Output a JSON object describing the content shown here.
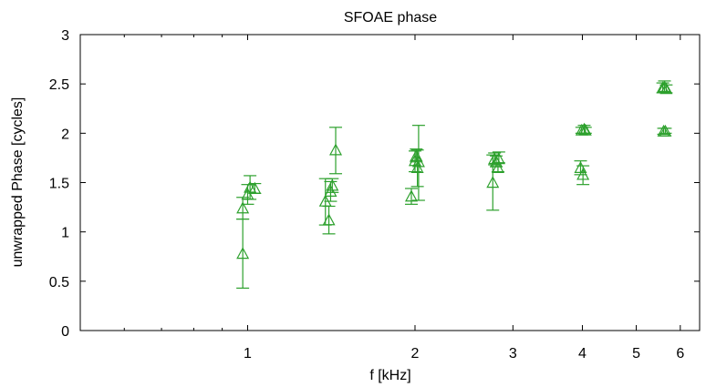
{
  "chart_data": {
    "type": "scatter",
    "title": "SFOAE phase",
    "xlabel": "f [kHz]",
    "ylabel": "unwrapped Phase [cycles]",
    "x_scale": "log",
    "xlim": [
      0.5,
      6.5
    ],
    "ylim": [
      0,
      3
    ],
    "x_ticks": [
      1,
      2,
      3,
      4,
      5,
      6
    ],
    "x_tick_labels": [
      "1",
      "2",
      "3",
      "4",
      "5",
      "6"
    ],
    "y_ticks": [
      0,
      0.5,
      1,
      1.5,
      2,
      2.5,
      3
    ],
    "y_tick_labels": [
      "0",
      "0.5",
      "1",
      "1.5",
      "2",
      "2.5",
      "3"
    ],
    "grid": false,
    "marker": "triangle",
    "color": "#2ca02c",
    "points": [
      {
        "x": 0.98,
        "y": 0.78,
        "ylo": 0.43,
        "yhi": 1.13
      },
      {
        "x": 0.98,
        "y": 1.24,
        "ylo": 1.13,
        "yhi": 1.35
      },
      {
        "x": 1.0,
        "y": 1.38,
        "ylo": 1.28,
        "yhi": 1.48
      },
      {
        "x": 1.01,
        "y": 1.45,
        "ylo": 1.33,
        "yhi": 1.57
      },
      {
        "x": 1.03,
        "y": 1.44,
        "ylo": 1.39,
        "yhi": 1.49
      },
      {
        "x": 1.38,
        "y": 1.31,
        "ylo": 1.07,
        "yhi": 1.54
      },
      {
        "x": 1.4,
        "y": 1.12,
        "ylo": 0.98,
        "yhi": 1.26
      },
      {
        "x": 1.41,
        "y": 1.41,
        "ylo": 1.31,
        "yhi": 1.51
      },
      {
        "x": 1.42,
        "y": 1.47,
        "ylo": 1.4,
        "yhi": 1.54
      },
      {
        "x": 1.44,
        "y": 1.83,
        "ylo": 1.59,
        "yhi": 2.06
      },
      {
        "x": 1.97,
        "y": 1.36,
        "ylo": 1.28,
        "yhi": 1.44
      },
      {
        "x": 2.0,
        "y": 1.72,
        "ylo": 1.61,
        "yhi": 1.82
      },
      {
        "x": 2.01,
        "y": 1.77,
        "ylo": 1.71,
        "yhi": 1.84
      },
      {
        "x": 2.02,
        "y": 1.65,
        "ylo": 1.46,
        "yhi": 1.83
      },
      {
        "x": 2.03,
        "y": 1.71,
        "ylo": 1.32,
        "yhi": 2.08
      },
      {
        "x": 2.76,
        "y": 1.5,
        "ylo": 1.22,
        "yhi": 1.78
      },
      {
        "x": 2.78,
        "y": 1.74,
        "ylo": 1.68,
        "yhi": 1.8
      },
      {
        "x": 2.8,
        "y": 1.71,
        "ylo": 1.66,
        "yhi": 1.77
      },
      {
        "x": 2.82,
        "y": 1.65,
        "ylo": 1.61,
        "yhi": 1.7
      },
      {
        "x": 2.83,
        "y": 1.74,
        "ylo": 1.7,
        "yhi": 1.81
      },
      {
        "x": 3.97,
        "y": 1.65,
        "ylo": 1.58,
        "yhi": 1.72
      },
      {
        "x": 3.99,
        "y": 2.03,
        "ylo": 2.0,
        "yhi": 2.06
      },
      {
        "x": 4.01,
        "y": 1.58,
        "ylo": 1.48,
        "yhi": 1.67
      },
      {
        "x": 4.03,
        "y": 2.04,
        "ylo": 2.0,
        "yhi": 2.08
      },
      {
        "x": 4.05,
        "y": 2.03,
        "ylo": 2.0,
        "yhi": 2.06
      },
      {
        "x": 5.58,
        "y": 2.46,
        "ylo": 2.41,
        "yhi": 2.51
      },
      {
        "x": 5.6,
        "y": 2.02,
        "ylo": 1.99,
        "yhi": 2.05
      },
      {
        "x": 5.62,
        "y": 2.47,
        "ylo": 2.42,
        "yhi": 2.53
      },
      {
        "x": 5.64,
        "y": 2.02,
        "ylo": 2.0,
        "yhi": 2.05
      },
      {
        "x": 5.66,
        "y": 2.45,
        "ylo": 2.41,
        "yhi": 2.49
      }
    ]
  }
}
